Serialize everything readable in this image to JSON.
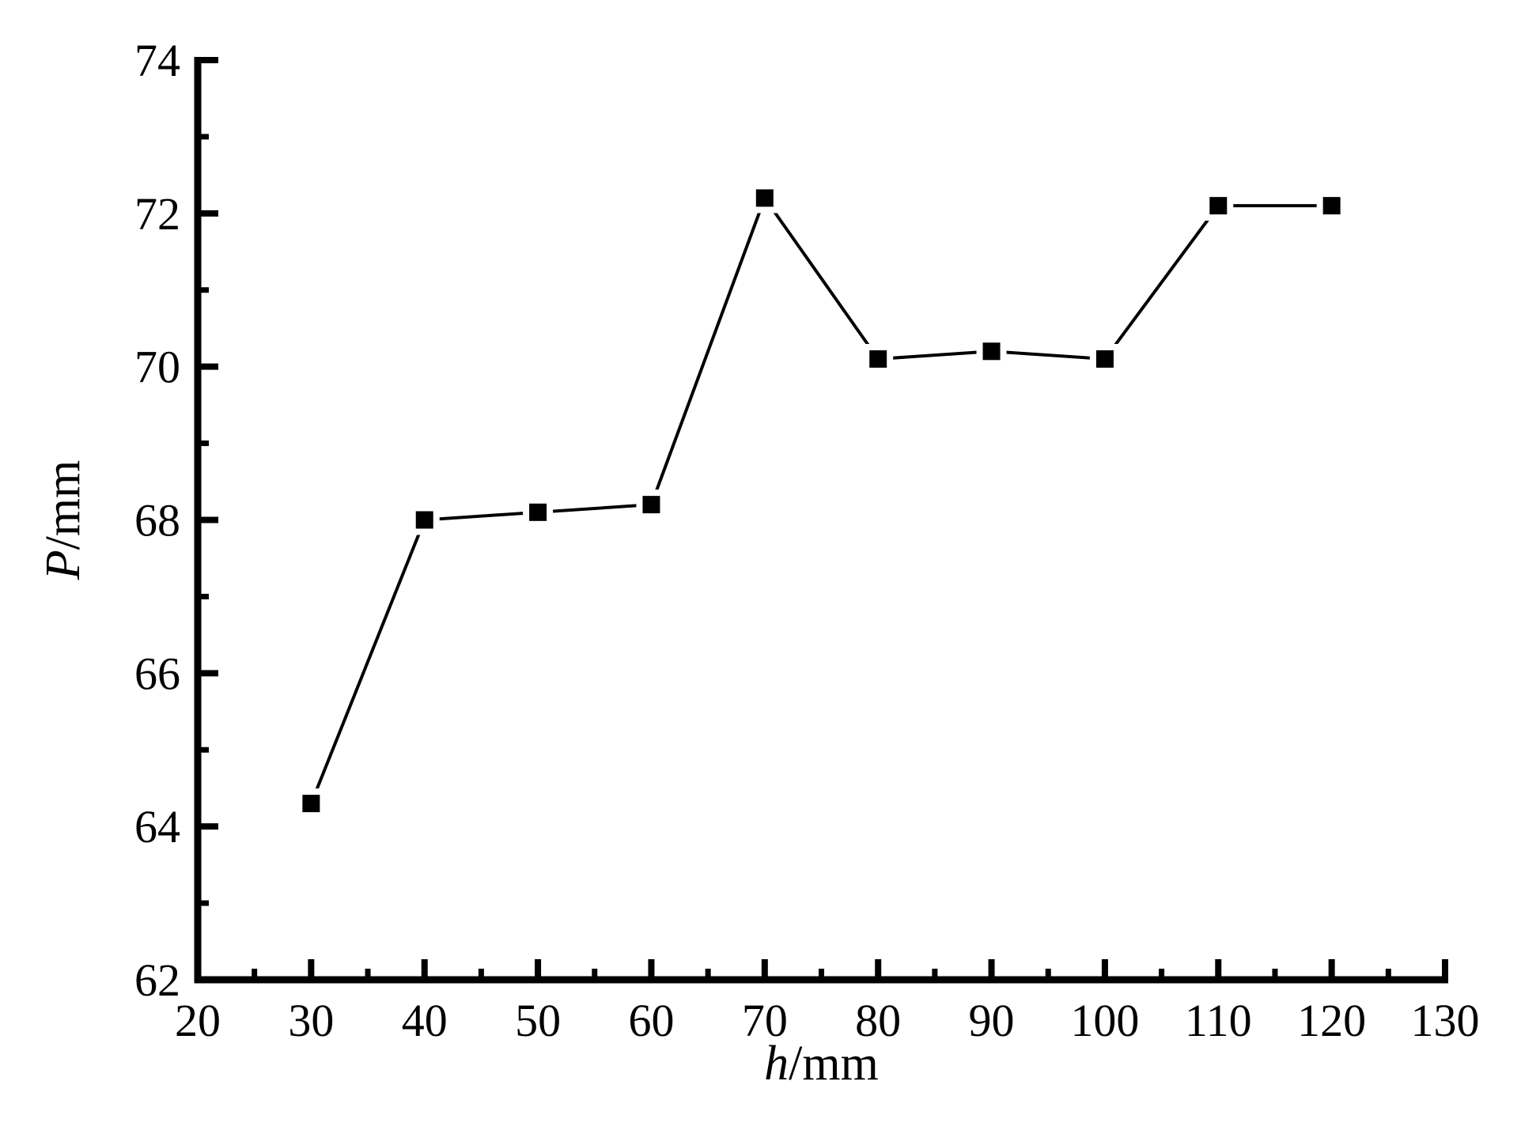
{
  "chart_data": {
    "type": "line",
    "title": "",
    "xlabel": {
      "symbol": "h",
      "unit": "/mm"
    },
    "ylabel": {
      "symbol": "P",
      "unit": "/mm"
    },
    "xlim": [
      20,
      130
    ],
    "ylim": [
      62,
      74
    ],
    "xticks": [
      "20",
      "30",
      "40",
      "50",
      "60",
      "70",
      "80",
      "90",
      "100",
      "110",
      "120",
      "130"
    ],
    "yticks": [
      "62",
      "64",
      "66",
      "68",
      "70",
      "72",
      "74"
    ],
    "x_minor_step": 5,
    "y_minor_step": 1,
    "grid": false,
    "legend": "none",
    "marker": "square",
    "color": "#000000",
    "series": [
      {
        "x": [
          30,
          40,
          50,
          60,
          70,
          80,
          90,
          100,
          110,
          120
        ],
        "y": [
          64.3,
          68.0,
          68.1,
          68.2,
          72.2,
          70.1,
          70.2,
          70.1,
          72.1,
          72.1
        ]
      }
    ]
  }
}
